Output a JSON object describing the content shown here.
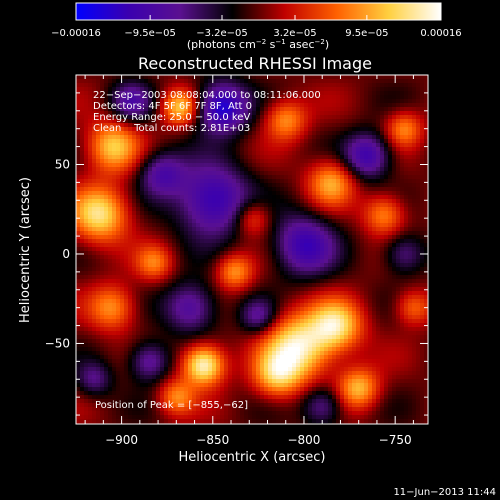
{
  "chart_data": {
    "type": "heatmap",
    "title": "Reconstructed RHESSI Image",
    "xlabel": "Heliocentric X (arcsec)",
    "ylabel": "Heliocentric Y (arcsec)",
    "xlim": [
      -925,
      -732
    ],
    "ylim": [
      -95,
      100
    ],
    "x_ticks": [
      {
        "value": -900,
        "label": "−900"
      },
      {
        "value": -850,
        "label": "−850"
      },
      {
        "value": -800,
        "label": "−800"
      },
      {
        "value": -750,
        "label": "−750"
      }
    ],
    "y_ticks": [
      {
        "value": -50,
        "label": "−50"
      },
      {
        "value": 0,
        "label": "0"
      },
      {
        "value": 50,
        "label": "50"
      }
    ],
    "colorbar": {
      "range": [
        -0.00016,
        0.00016
      ],
      "ticks": [
        {
          "value": -0.00016,
          "label": "−0.00016"
        },
        {
          "value": -9.5e-05,
          "label": "−9.5e−05"
        },
        {
          "value": -3.2e-05,
          "label": "−3.2e−05"
        },
        {
          "value": 3.2e-05,
          "label": "3.2e−05"
        },
        {
          "value": 9.5e-05,
          "label": "9.5e−05"
        },
        {
          "value": 0.00016,
          "label": "0.00016"
        }
      ],
      "unit_parts": [
        "(photons cm",
        "−2",
        " s",
        "−1",
        " asec",
        "−2",
        ")"
      ],
      "colormap": [
        "#0000ff",
        "#3a00b0",
        "#5a1090",
        "#000000",
        "#c00000",
        "#ff6000",
        "#ffd040",
        "#ffffff"
      ]
    },
    "info_lines": [
      "22−Sep−2003 08:08:04.000 to 08:11:06.000",
      "Detectors: 4F 5F 6F 7F 8F, Att 0",
      "Energy Range: 25.0 − 50.0 keV",
      "Clean    Total counts: 2.81E+03"
    ],
    "peak_label": "Position of Peak = [−855,−62]",
    "peak": {
      "x": -855,
      "y": -62
    },
    "sources": [
      {
        "x": -855,
        "y": -62,
        "amp": 1.0,
        "w": 8
      },
      {
        "x": -803,
        "y": -52,
        "amp": 0.9,
        "w": 13
      },
      {
        "x": -782,
        "y": -40,
        "amp": 0.75,
        "w": 10
      },
      {
        "x": -815,
        "y": -68,
        "amp": 0.6,
        "w": 9
      },
      {
        "x": -770,
        "y": -75,
        "amp": 0.65,
        "w": 8
      },
      {
        "x": -912,
        "y": 22,
        "amp": 0.8,
        "w": 11
      },
      {
        "x": -905,
        "y": 60,
        "amp": 0.7,
        "w": 10
      },
      {
        "x": -905,
        "y": -30,
        "amp": 0.55,
        "w": 9
      },
      {
        "x": -868,
        "y": 82,
        "amp": 0.7,
        "w": 7
      },
      {
        "x": -810,
        "y": 75,
        "amp": 0.55,
        "w": 8
      },
      {
        "x": -785,
        "y": 40,
        "amp": 0.6,
        "w": 9
      },
      {
        "x": -756,
        "y": 22,
        "amp": 0.55,
        "w": 8
      },
      {
        "x": -745,
        "y": 70,
        "amp": 0.5,
        "w": 7
      },
      {
        "x": -740,
        "y": -30,
        "amp": 0.45,
        "w": 7
      },
      {
        "x": -870,
        "y": -80,
        "amp": 0.5,
        "w": 7
      },
      {
        "x": -882,
        "y": -5,
        "amp": 0.45,
        "w": 7
      },
      {
        "x": -838,
        "y": -10,
        "amp": 0.55,
        "w": 7
      },
      {
        "x": -828,
        "y": 20,
        "amp": 0.45,
        "w": 7
      },
      {
        "x": -850,
        "y": 30,
        "amp": -0.8,
        "w": 14
      },
      {
        "x": -845,
        "y": 82,
        "amp": -0.9,
        "w": 10
      },
      {
        "x": -800,
        "y": 5,
        "amp": -0.7,
        "w": 12
      },
      {
        "x": -765,
        "y": 55,
        "amp": -0.7,
        "w": 9
      },
      {
        "x": -878,
        "y": 45,
        "amp": -0.55,
        "w": 9
      },
      {
        "x": -895,
        "y": 85,
        "amp": -0.5,
        "w": 8
      },
      {
        "x": -862,
        "y": -30,
        "amp": -0.6,
        "w": 10
      },
      {
        "x": -885,
        "y": -60,
        "amp": -0.55,
        "w": 8
      },
      {
        "x": -790,
        "y": -85,
        "amp": -0.5,
        "w": 8
      },
      {
        "x": -745,
        "y": 0,
        "amp": -0.45,
        "w": 8
      },
      {
        "x": -825,
        "y": -35,
        "amp": -0.45,
        "w": 7
      },
      {
        "x": -915,
        "y": -70,
        "amp": -0.4,
        "w": 7
      }
    ]
  },
  "footer": {
    "date": "11−Jun−2013 11:44"
  }
}
